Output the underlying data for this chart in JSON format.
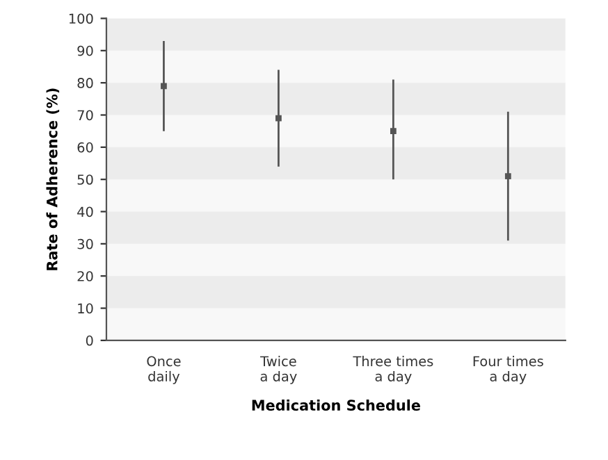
{
  "chart_data": {
    "type": "scatter",
    "xlabel": "Medication Schedule",
    "ylabel": "Rate of Adherence (%)",
    "categories": [
      "Once\ndaily",
      "Twice\na day",
      "Three times\na day",
      "Four times\na day"
    ],
    "series": [
      {
        "color": "#555555",
        "values": [
          79,
          69,
          65,
          51
        ],
        "errors": [
          [
            65,
            93
          ],
          [
            54,
            84
          ],
          [
            50,
            81
          ],
          [
            31,
            71
          ]
        ]
      }
    ],
    "marker": "square",
    "ylim": [
      0,
      100
    ],
    "yticks": [
      0,
      10,
      20,
      30,
      40,
      50,
      60,
      70,
      80,
      90,
      100
    ],
    "bands": [
      {
        "axis": "y",
        "from": 10,
        "to": 20,
        "color": "#ececec"
      },
      {
        "axis": "y",
        "from": 30,
        "to": 40,
        "color": "#ececec"
      },
      {
        "axis": "y",
        "from": 50,
        "to": 60,
        "color": "#ececec"
      },
      {
        "axis": "y",
        "from": 70,
        "to": 80,
        "color": "#ececec"
      },
      {
        "axis": "y",
        "from": 90,
        "to": 100,
        "color": "#ececec"
      }
    ],
    "grid": false,
    "legend": false
  }
}
